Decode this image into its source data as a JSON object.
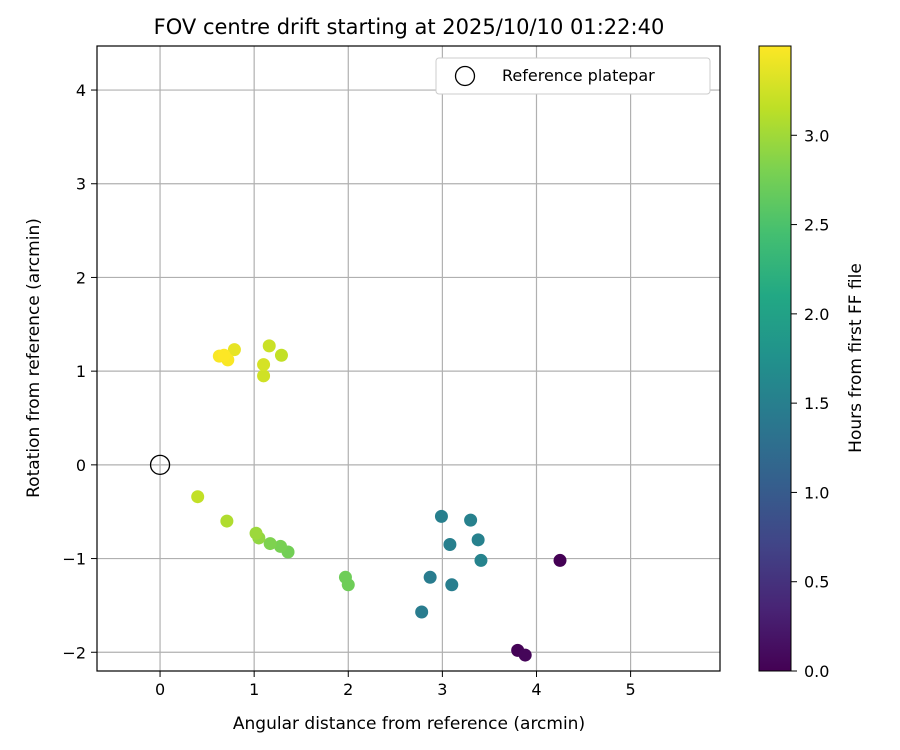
{
  "chart_data": {
    "type": "scatter",
    "title": "FOV centre drift starting at 2025/10/10 01:22:40",
    "xlabel": "Angular distance from reference (arcmin)",
    "ylabel": "Rotation from reference (arcmin)",
    "xlim": [
      -0.67,
      5.95
    ],
    "ylim": [
      -2.2,
      4.47
    ],
    "xticks": [
      0,
      1,
      2,
      3,
      4,
      5
    ],
    "yticks": [
      -2,
      -1,
      0,
      1,
      2,
      3,
      4
    ],
    "xtick_labels": [
      "0",
      "1",
      "2",
      "3",
      "4",
      "5"
    ],
    "ytick_labels": [
      "−2",
      "−1",
      "0",
      "1",
      "2",
      "3",
      "4"
    ],
    "grid": true,
    "legend": {
      "placement": "top-right",
      "entries": [
        "Reference platepar"
      ]
    },
    "reference": {
      "x": 0,
      "y": 0,
      "label": "Reference platepar"
    },
    "colorbar": {
      "label": "Hours from first FF file",
      "colormap": "viridis",
      "range": [
        0,
        3.5
      ],
      "ticks": [
        0.0,
        0.5,
        1.0,
        1.5,
        2.0,
        2.5,
        3.0
      ],
      "tick_labels": [
        "0.0",
        "0.5",
        "1.0",
        "1.5",
        "2.0",
        "2.5",
        "3.0"
      ]
    },
    "points": [
      {
        "x": 4.25,
        "y": -1.02,
        "hours": 0.0
      },
      {
        "x": 3.8,
        "y": -1.98,
        "hours": 0.02
      },
      {
        "x": 3.88,
        "y": -2.03,
        "hours": 0.05
      },
      {
        "x": 2.78,
        "y": -1.57,
        "hours": 1.45
      },
      {
        "x": 2.87,
        "y": -1.2,
        "hours": 1.45
      },
      {
        "x": 3.1,
        "y": -1.28,
        "hours": 1.48
      },
      {
        "x": 2.99,
        "y": -0.55,
        "hours": 1.5
      },
      {
        "x": 3.08,
        "y": -0.85,
        "hours": 1.5
      },
      {
        "x": 3.3,
        "y": -0.59,
        "hours": 1.52
      },
      {
        "x": 3.38,
        "y": -0.8,
        "hours": 1.52
      },
      {
        "x": 3.41,
        "y": -1.02,
        "hours": 1.55
      },
      {
        "x": 1.97,
        "y": -1.2,
        "hours": 2.72
      },
      {
        "x": 2.0,
        "y": -1.28,
        "hours": 2.72
      },
      {
        "x": 1.36,
        "y": -0.93,
        "hours": 2.75
      },
      {
        "x": 1.28,
        "y": -0.87,
        "hours": 2.78
      },
      {
        "x": 1.17,
        "y": -0.84,
        "hours": 2.82
      },
      {
        "x": 1.05,
        "y": -0.78,
        "hours": 2.92
      },
      {
        "x": 1.02,
        "y": -0.73,
        "hours": 2.98
      },
      {
        "x": 0.71,
        "y": -0.6,
        "hours": 3.08
      },
      {
        "x": 0.4,
        "y": -0.34,
        "hours": 3.18
      },
      {
        "x": 1.29,
        "y": 1.17,
        "hours": 3.18
      },
      {
        "x": 1.16,
        "y": 1.27,
        "hours": 3.22
      },
      {
        "x": 1.1,
        "y": 0.95,
        "hours": 3.25
      },
      {
        "x": 1.1,
        "y": 1.07,
        "hours": 3.28
      },
      {
        "x": 0.79,
        "y": 1.23,
        "hours": 3.38
      },
      {
        "x": 0.63,
        "y": 1.16,
        "hours": 3.48
      },
      {
        "x": 0.72,
        "y": 1.12,
        "hours": 3.48
      },
      {
        "x": 0.68,
        "y": 1.17,
        "hours": 3.5
      }
    ]
  }
}
